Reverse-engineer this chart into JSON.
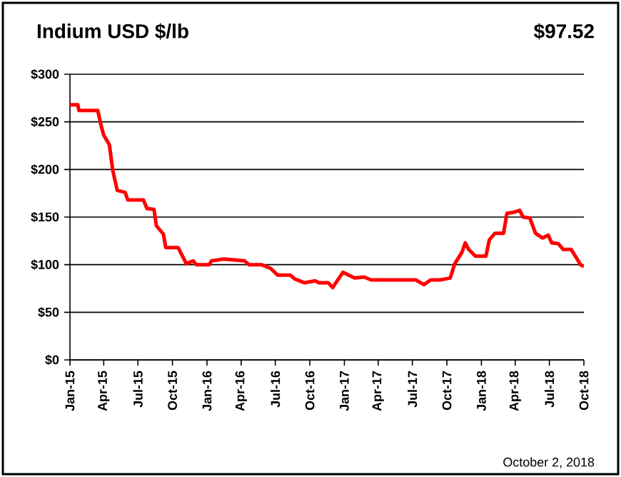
{
  "chart_data": {
    "type": "line",
    "title": "Indium USD $/lb",
    "annotations": [
      "$97.52",
      "October 2, 2018"
    ],
    "x": [
      "2015-01-01",
      "2015-01-22",
      "2015-01-25",
      "2015-03-16",
      "2015-03-25",
      "2015-04-01",
      "2015-04-16",
      "2015-04-25",
      "2015-05-07",
      "2015-05-28",
      "2015-06-04",
      "2015-07-16",
      "2015-07-25",
      "2015-08-13",
      "2015-08-19",
      "2015-09-07",
      "2015-09-13",
      "2015-10-16",
      "2015-11-07",
      "2015-11-25",
      "2015-12-04",
      "2016-01-07",
      "2016-01-13",
      "2016-02-15",
      "2016-04-10",
      "2016-04-22",
      "2016-05-25",
      "2016-06-19",
      "2016-07-07",
      "2016-08-10",
      "2016-08-22",
      "2016-09-04",
      "2016-09-16",
      "2016-10-16",
      "2016-10-25",
      "2016-11-19",
      "2016-12-01",
      "2016-12-28",
      "2017-01-28",
      "2017-02-23",
      "2017-03-13",
      "2017-07-10",
      "2017-08-01",
      "2017-08-19",
      "2017-09-13",
      "2017-10-10",
      "2017-10-22",
      "2017-11-10",
      "2017-11-19",
      "2017-11-28",
      "2017-12-16",
      "2018-01-13",
      "2018-01-22",
      "2018-02-06",
      "2018-03-01",
      "2018-03-10",
      "2018-03-28",
      "2018-04-13",
      "2018-04-22",
      "2018-05-10",
      "2018-05-25",
      "2018-06-13",
      "2018-06-28",
      "2018-07-07",
      "2018-07-25",
      "2018-08-07",
      "2018-08-28",
      "2018-09-13",
      "2018-09-22",
      "2018-10-01"
    ],
    "series": [
      {
        "color": "#ff0000",
        "values": [
          268,
          268,
          262,
          262,
          246,
          236,
          226,
          199,
          178,
          176,
          168,
          168,
          159,
          158,
          141,
          132,
          118,
          118,
          101,
          104,
          100,
          100,
          104,
          106,
          104,
          100,
          100,
          96,
          89,
          89,
          85,
          83,
          81,
          83,
          81,
          81,
          76,
          92,
          86,
          87,
          84,
          84,
          79,
          84,
          84,
          86,
          101,
          113,
          123,
          116,
          109,
          109,
          126,
          133,
          133,
          154,
          155,
          157,
          150,
          149,
          133,
          128,
          131,
          123,
          122,
          116,
          116,
          106,
          100,
          98
        ]
      }
    ],
    "xlim": [
      "2015-01-01",
      "2018-10-01"
    ],
    "xticks": [
      {
        "value": "2015-01-01",
        "label": "Jan-15"
      },
      {
        "value": "2015-04-01",
        "label": "Apr-15"
      },
      {
        "value": "2015-07-01",
        "label": "Jul-15"
      },
      {
        "value": "2015-10-01",
        "label": "Oct-15"
      },
      {
        "value": "2016-01-01",
        "label": "Jan-16"
      },
      {
        "value": "2016-04-01",
        "label": "Apr-16"
      },
      {
        "value": "2016-07-01",
        "label": "Jul-16"
      },
      {
        "value": "2016-10-01",
        "label": "Oct-16"
      },
      {
        "value": "2017-01-01",
        "label": "Jan-17"
      },
      {
        "value": "2017-04-01",
        "label": "Apr-17"
      },
      {
        "value": "2017-07-01",
        "label": "Jul-17"
      },
      {
        "value": "2017-10-01",
        "label": "Oct-17"
      },
      {
        "value": "2018-01-01",
        "label": "Jan-18"
      },
      {
        "value": "2018-04-01",
        "label": "Apr-18"
      },
      {
        "value": "2018-07-01",
        "label": "Jul-18"
      },
      {
        "value": "2018-10-01",
        "label": "Oct-18"
      }
    ],
    "ylim": [
      0,
      300
    ],
    "yticks": [
      {
        "value": 0,
        "label": "$0"
      },
      {
        "value": 50,
        "label": "$50"
      },
      {
        "value": 100,
        "label": "$100"
      },
      {
        "value": 150,
        "label": "$150"
      },
      {
        "value": 200,
        "label": "$200"
      },
      {
        "value": 250,
        "label": "$250"
      },
      {
        "value": 300,
        "label": "$300"
      }
    ],
    "grid": "y",
    "marker": "none",
    "line_style": "solid"
  }
}
